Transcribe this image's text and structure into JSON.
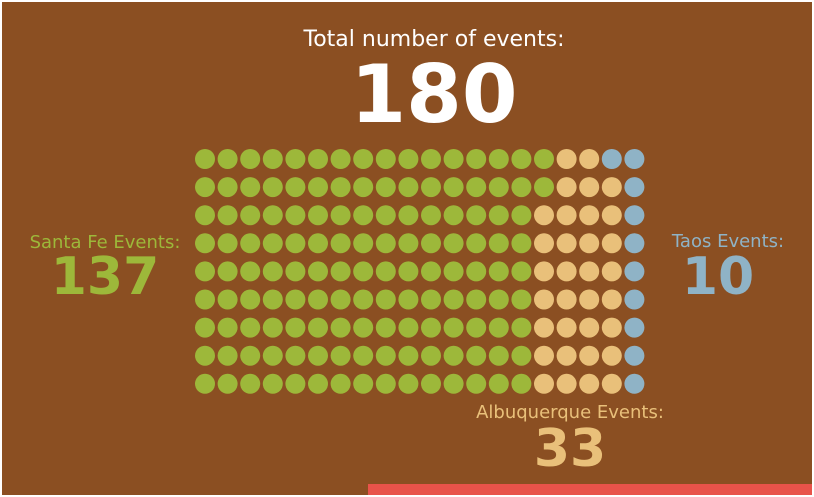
{
  "chart_data": {
    "type": "waffle",
    "title": "Total number of events:",
    "total": 180,
    "rows": 9,
    "columns": 20,
    "series": [
      {
        "name": "Santa Fe Events:",
        "value": 137,
        "color": "#9db83a"
      },
      {
        "name": "Albuquerque Events:",
        "value": 33,
        "color": "#e9c07a"
      },
      {
        "name": "Taos Events:",
        "value": 10,
        "color": "#8fb3c6"
      }
    ]
  }
}
